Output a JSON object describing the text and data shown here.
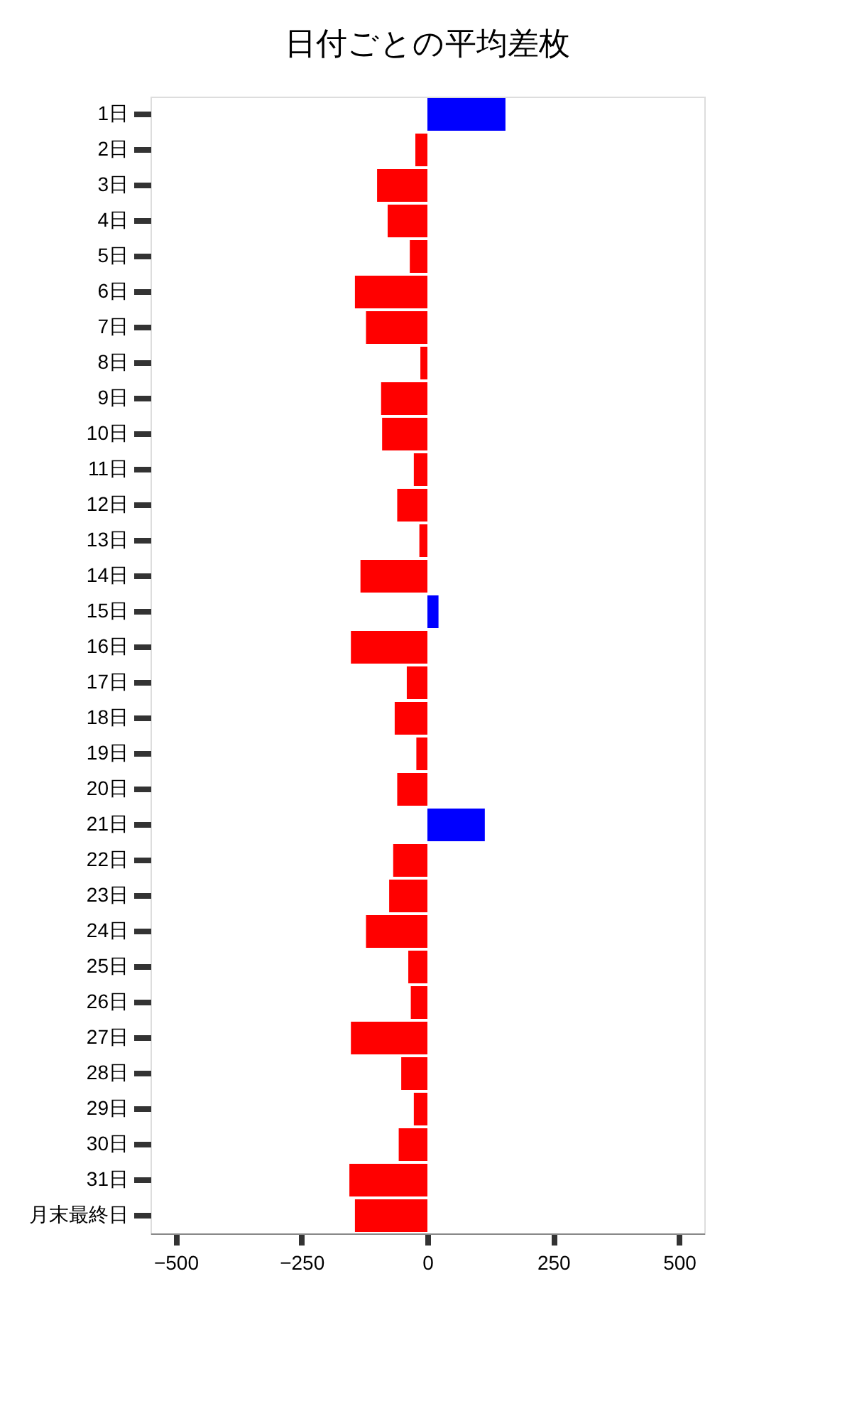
{
  "chart_data": {
    "type": "bar",
    "orientation": "horizontal",
    "title": "日付ごとの平均差枚",
    "categories": [
      "1日",
      "2日",
      "3日",
      "4日",
      "5日",
      "6日",
      "7日",
      "8日",
      "9日",
      "10日",
      "11日",
      "12日",
      "13日",
      "14日",
      "15日",
      "16日",
      "17日",
      "18日",
      "19日",
      "20日",
      "21日",
      "22日",
      "23日",
      "24日",
      "25日",
      "26日",
      "27日",
      "28日",
      "29日",
      "30日",
      "31日",
      "月末最終日"
    ],
    "values": [
      155,
      -24,
      -100,
      -79,
      -35,
      -144,
      -122,
      -14,
      -92,
      -90,
      -27,
      -60,
      -16,
      -133,
      22,
      -152,
      -41,
      -65,
      -22,
      -60,
      114,
      -68,
      -76,
      -122,
      -38,
      -33,
      -152,
      -52,
      -27,
      -57,
      -155,
      -144
    ],
    "colors": [
      "#0000ff",
      "#ff0000",
      "#ff0000",
      "#ff0000",
      "#ff0000",
      "#ff0000",
      "#ff0000",
      "#ff0000",
      "#ff0000",
      "#ff0000",
      "#ff0000",
      "#ff0000",
      "#ff0000",
      "#ff0000",
      "#0000ff",
      "#ff0000",
      "#ff0000",
      "#ff0000",
      "#ff0000",
      "#ff0000",
      "#0000ff",
      "#ff0000",
      "#ff0000",
      "#ff0000",
      "#ff0000",
      "#ff0000",
      "#ff0000",
      "#ff0000",
      "#ff0000",
      "#ff0000",
      "#ff0000",
      "#ff0000"
    ],
    "xlim": [
      -550,
      550
    ],
    "xticks": [
      -500,
      -250,
      0,
      250,
      500
    ],
    "grid": false
  }
}
